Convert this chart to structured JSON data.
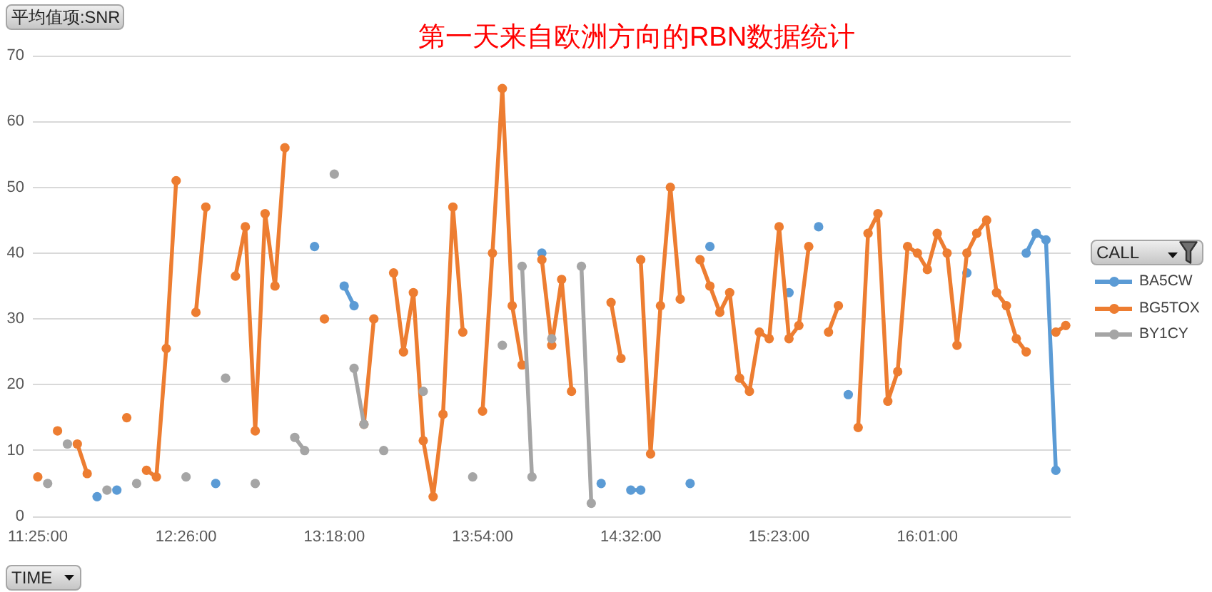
{
  "chart_data": {
    "type": "line",
    "title": "第一天来自欧洲方向的RBN数据统计",
    "xlabel": "TIME",
    "ylabel": "平均值项:SNR",
    "legend_title": "CALL",
    "categories": [
      "11:25:00",
      null,
      null,
      null,
      null,
      null,
      null,
      null,
      null,
      null,
      null,
      null,
      null,
      null,
      null,
      "12:26:00",
      null,
      null,
      null,
      null,
      null,
      null,
      null,
      null,
      null,
      null,
      null,
      null,
      null,
      null,
      "13:18:00",
      null,
      null,
      null,
      null,
      null,
      null,
      null,
      null,
      null,
      null,
      null,
      null,
      null,
      null,
      "13:54:00",
      null,
      null,
      null,
      null,
      null,
      null,
      null,
      null,
      null,
      null,
      null,
      null,
      null,
      null,
      "14:32:00",
      null,
      null,
      null,
      null,
      null,
      null,
      null,
      null,
      null,
      null,
      null,
      null,
      null,
      null,
      "15:23:00",
      null,
      null,
      null,
      null,
      null,
      null,
      null,
      null,
      null,
      null,
      null,
      null,
      null,
      null,
      "16:01:00",
      null,
      null,
      null,
      null,
      null,
      null,
      null,
      null,
      null,
      null,
      null,
      null,
      null,
      null
    ],
    "series": [
      {
        "name": "BA5CW",
        "color": "#5b9bd5",
        "values": [
          null,
          null,
          null,
          null,
          null,
          null,
          3,
          null,
          4,
          null,
          null,
          null,
          null,
          null,
          null,
          null,
          null,
          null,
          5,
          null,
          null,
          null,
          null,
          null,
          null,
          null,
          null,
          null,
          41,
          null,
          null,
          35,
          32,
          null,
          null,
          null,
          null,
          null,
          null,
          null,
          null,
          null,
          null,
          null,
          null,
          null,
          null,
          null,
          null,
          null,
          null,
          40,
          null,
          null,
          null,
          null,
          null,
          5,
          null,
          null,
          4,
          4,
          null,
          null,
          null,
          null,
          5,
          null,
          41,
          null,
          null,
          null,
          null,
          null,
          null,
          null,
          34,
          null,
          null,
          44,
          null,
          null,
          18.5,
          null,
          null,
          null,
          null,
          null,
          null,
          null,
          null,
          null,
          null,
          null,
          37,
          null,
          null,
          null,
          null,
          null,
          40,
          43,
          42,
          7,
          null
        ]
      },
      {
        "name": "BG5TOX",
        "color": "#ed7d31",
        "values": [
          6,
          null,
          13,
          null,
          11,
          6.5,
          null,
          null,
          null,
          15,
          null,
          7,
          6,
          25.5,
          51,
          null,
          31,
          47,
          null,
          null,
          36.5,
          44,
          13,
          46,
          35,
          56,
          null,
          null,
          null,
          30,
          null,
          null,
          null,
          14,
          30,
          null,
          37,
          25,
          34,
          11.5,
          3,
          15.5,
          47,
          28,
          null,
          16,
          40,
          65,
          32,
          23,
          null,
          39,
          26,
          36,
          19,
          null,
          null,
          null,
          32.5,
          24,
          null,
          39,
          9.5,
          32,
          50,
          33,
          null,
          39,
          35,
          31,
          34,
          21,
          19,
          28,
          27,
          44,
          27,
          29,
          41,
          null,
          28,
          32,
          null,
          13.5,
          43,
          46,
          17.5,
          22,
          41,
          40,
          37.5,
          43,
          40,
          26,
          40,
          43,
          45,
          34,
          32,
          27,
          25,
          null,
          null,
          28,
          29
        ]
      },
      {
        "name": "BY1CY",
        "color": "#a5a5a5",
        "values": [
          null,
          5,
          null,
          11,
          null,
          null,
          null,
          4,
          null,
          null,
          5,
          null,
          null,
          null,
          null,
          6,
          null,
          null,
          null,
          21,
          null,
          null,
          5,
          null,
          null,
          null,
          12,
          10,
          null,
          null,
          52,
          null,
          22.5,
          14,
          null,
          10,
          null,
          null,
          null,
          19,
          null,
          null,
          null,
          null,
          6,
          null,
          null,
          26,
          null,
          38,
          6,
          null,
          27,
          null,
          null,
          38,
          2,
          null,
          null,
          null,
          null,
          null,
          null,
          null,
          null,
          null,
          null,
          null,
          null,
          null,
          null,
          null,
          null,
          null,
          null,
          null,
          null,
          null,
          null,
          null,
          null,
          null,
          null,
          null,
          null,
          null,
          null,
          null,
          null,
          null,
          null,
          null,
          null,
          null,
          null,
          null,
          null,
          null,
          null,
          null,
          null,
          null,
          null,
          null,
          null
        ]
      }
    ],
    "ylim": [
      0,
      70
    ],
    "yticks": [
      0,
      10,
      20,
      30,
      40,
      50,
      60,
      70
    ],
    "grid": "y",
    "legend": "right",
    "marker": "circle",
    "line_style": "solid"
  }
}
